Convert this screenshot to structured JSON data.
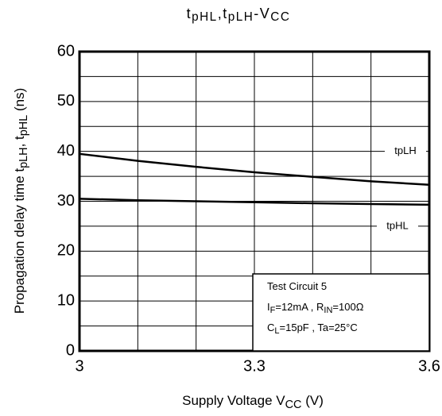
{
  "chart_data": {
    "type": "line",
    "title": [
      "t",
      "pHL",
      ",t",
      "pLH",
      "-V",
      "CC"
    ],
    "ylabel": [
      "Propagation delay time  t",
      "pLH",
      ", t",
      "pHL",
      "   (ns)"
    ],
    "xlabel": [
      "Supply Voltage V",
      "CC",
      " (V)"
    ],
    "x": [
      3,
      3.1,
      3.2,
      3.3,
      3.4,
      3.5,
      3.6
    ],
    "series": [
      {
        "name": "tpLH",
        "color": "#000000",
        "values": [
          39.5,
          38.1,
          36.9,
          35.8,
          34.9,
          34.0,
          33.3
        ]
      },
      {
        "name": "tpHL",
        "color": "#000000",
        "values": [
          30.5,
          30.2,
          30.0,
          29.8,
          29.6,
          29.45,
          29.3
        ]
      }
    ],
    "xlim": [
      3,
      3.6
    ],
    "ylim": [
      0,
      60
    ],
    "xticks": [
      3,
      3.3,
      3.6
    ],
    "yticks": [
      0,
      10,
      20,
      30,
      40,
      50,
      60
    ],
    "xticks_minor": [
      3.1,
      3.2,
      3.4,
      3.5
    ],
    "yticks_minor": [
      5,
      15,
      25,
      35,
      45,
      55
    ],
    "grid": true,
    "annotation": [
      [
        "Test Circuit 5"
      ],
      [
        "I",
        "F",
        "=12mA , R",
        "IN",
        "=100Ω"
      ],
      [
        "C",
        "L",
        "=15pF , Ta=25°C"
      ]
    ]
  }
}
